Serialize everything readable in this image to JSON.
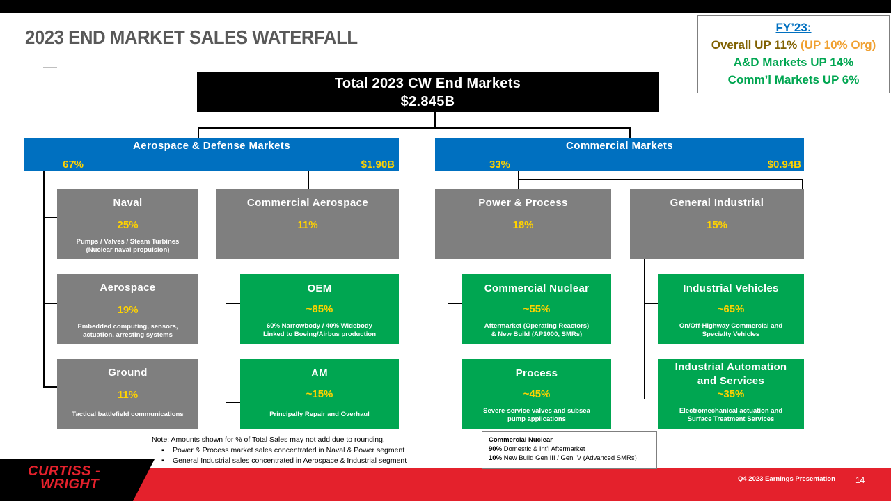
{
  "title": "2023 END MARKET SALES WATERFALL",
  "fy_box": {
    "label": "FY’23:",
    "overall_a": "Overall UP 11% ",
    "overall_b": "(UP 10% Org)",
    "ad": "A&D Markets UP 14%",
    "comm": "Comm’l Markets UP 6%"
  },
  "total": {
    "label": "Total 2023 CW End Markets",
    "value": "$2.845B"
  },
  "ad_markets": {
    "label": "Aerospace & Defense Markets",
    "pct": "67%",
    "amount": "$1.90B"
  },
  "commercial_markets": {
    "label": "Commercial Markets",
    "pct": "33%",
    "amount": "$0.94B"
  },
  "segments": [
    {
      "name": "Naval",
      "pct": "25%",
      "desc": "Pumps / Valves / Steam Turbines\n(Nuclear naval propulsion)"
    },
    {
      "name": "Commercial Aerospace",
      "pct": "11%"
    },
    {
      "name": "Power & Process",
      "pct": "18%"
    },
    {
      "name": "General Industrial",
      "pct": "15%"
    },
    {
      "name": "Aerospace",
      "pct": "19%",
      "desc": "Embedded computing, sensors,\nactuation, arresting systems"
    },
    {
      "name": "Ground",
      "pct": "11%",
      "desc": "Tactical battlefield communications"
    }
  ],
  "subsegments": [
    {
      "name": "OEM",
      "pct": "~85%",
      "desc": "60% Narrowbody / 40% Widebody\nLinked to Boeing/Airbus production"
    },
    {
      "name": "AM",
      "pct": "~15%",
      "desc": "Principally Repair and Overhaul"
    },
    {
      "name": "Commercial Nuclear",
      "pct": "~55%",
      "desc": "Aftermarket (Operating Reactors)\n& New Build (AP1000, SMRs)"
    },
    {
      "name": "Process",
      "pct": "~45%",
      "desc": "Severe-service valves and subsea\npump applications"
    },
    {
      "name": "Industrial Vehicles",
      "pct": "~65%",
      "desc": "On/Off-Highway Commercial and\nSpecialty Vehicles"
    },
    {
      "name": "Industrial Automation\nand Services",
      "pct": "~35%",
      "desc": "Electromechanical actuation and\nSurface Treatment Services"
    }
  ],
  "notes": {
    "line1": "Note:  Amounts shown for % of Total Sales may not add due to rounding.",
    "bullet": "▪",
    "line2": "Power & Process market sales concentrated  in Naval & Power segment",
    "line3": "General Industrial  sales concentrated  in Aerospace & Industrial  segment"
  },
  "commercial_nuclear_box": {
    "title": "Commercial Nuclear",
    "row1_pct": "90%",
    "row1_text": " Domestic  & Int'l  Aftermarket",
    "row2_pct": "10%",
    "row2_text": " New Build Gen III / Gen IV (Advanced SMRs)"
  },
  "logo": {
    "line1": "CURTISS -",
    "line2": "WRIGHT"
  },
  "footer": {
    "presentation": "Q4 2023 Earnings Presentation",
    "page": "14"
  },
  "colors": {
    "blue": "#0070c0",
    "gray": "#7f7f7f",
    "green": "#00a651",
    "yellow": "#ffd200",
    "red": "#e4212c"
  }
}
